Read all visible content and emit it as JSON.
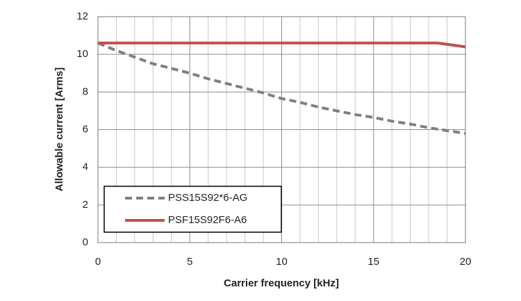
{
  "chart_data": {
    "type": "line",
    "x_label": "Carrier frequency [kHz]",
    "y_label": "Allowable current [Arms]",
    "xlim": [
      0,
      20
    ],
    "xticks": [
      0,
      5,
      10,
      15,
      20
    ],
    "ylim": [
      0,
      12
    ],
    "yticks": [
      0,
      2,
      4,
      6,
      8,
      10,
      12
    ],
    "grid": true,
    "legend": "lower left",
    "series": [
      {
        "name": "PSS15S92*6-AG",
        "color": "#7f7f7f",
        "dashed": true,
        "x": [
          0,
          1,
          2,
          3,
          4,
          5,
          6,
          7,
          8,
          9,
          10,
          11,
          12,
          13,
          14,
          15,
          16,
          17,
          18,
          19,
          20
        ],
        "values": [
          10.6,
          10.2,
          9.85,
          9.5,
          9.25,
          9.0,
          8.7,
          8.45,
          8.2,
          7.95,
          7.65,
          7.45,
          7.2,
          7.0,
          6.8,
          6.65,
          6.45,
          6.3,
          6.1,
          5.95,
          5.8
        ]
      },
      {
        "name": "PSF15S92F6-A6",
        "color": "#c0504d",
        "dashed": false,
        "x": [
          0,
          18.5,
          20
        ],
        "values": [
          10.6,
          10.6,
          10.4
        ]
      }
    ]
  }
}
